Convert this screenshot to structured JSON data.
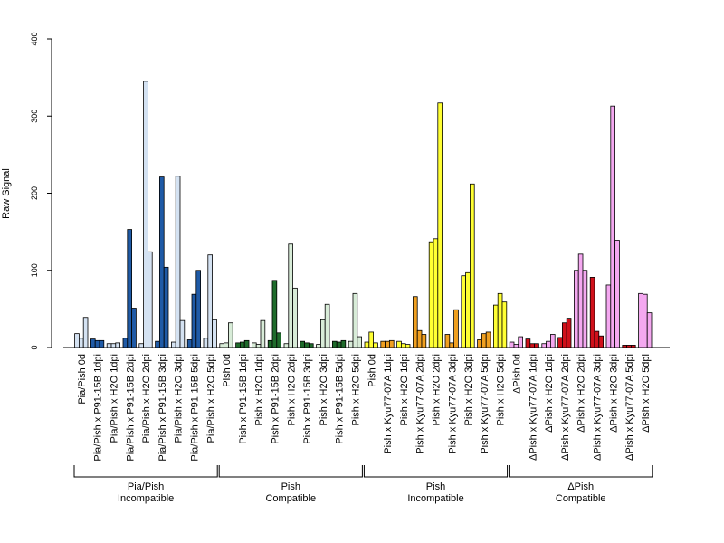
{
  "colors": {
    "pia_incompatible_light": "#d4e2f2",
    "pia_incompatible_dark": "#1f5aa6",
    "pish_compatible_light": "#d8ecd8",
    "pish_compatible_dark": "#1e6b2b",
    "pish_incompatible_light": "#ffff33",
    "pish_incompatible_dark": "#f0a020",
    "dpish_compatible_light": "#f4a8f0",
    "dpish_compatible_dark": "#d0101a"
  },
  "chart_data": {
    "type": "bar",
    "ylabel": "Raw Signal",
    "xlabel": "",
    "ylim": [
      0,
      400
    ],
    "yticks": [
      "0",
      "100",
      "200",
      "300",
      "400"
    ],
    "categories": [
      "Pia/Pish 0d",
      "Pia/Pish x P91-15B 1dpi",
      "Pia/Pish x H2O 1dpi",
      "Pia/Pish x P91-15B 2dpi",
      "Pia/Pish x H2O 2dpi",
      "Pia/Pish x P91-15B 3dpi",
      "Pia/Pish x H2O 3dpi",
      "Pia/Pish x P91-15B 5dpi",
      "Pia/Pish x H2O 5dpi",
      "Pish 0d",
      "Pish x P91-15B 1dpi",
      "Pish x H2O 1dpi",
      "Pish x P91-15B 2dpi",
      "Pish x H2O 2dpi",
      "Pish x P91-15B 3dpi",
      "Pish x H2O 3dpi",
      "Pish x P91-15B 5dpi",
      "Pish x H2O 5dpi",
      "Pish 0d",
      "Pish x Kyu77-07A 1dpi",
      "Pish x H2O 1dpi",
      "Pish x Kyu77-07A 2dpi",
      "Pish x H2O 2dpi",
      "Pish x Kyu77-07A 3dpi",
      "Pish x H2O 3dpi",
      "Pish x Kyu77-07A 5dpi",
      "Pish x H2O 5dpi",
      "ΔPish 0d",
      "ΔPish x Kyu77-07A 1dpi",
      "ΔPish x H2O 1dpi",
      "ΔPish x Kyu77-07A 2dpi",
      "ΔPish x H2O 2dpi",
      "ΔPish x Kyu77-07A 3dpi",
      "ΔPish x H2O 3dpi",
      "ΔPish x Kyu77-07A 5dpi",
      "ΔPish x H2O 5dpi"
    ],
    "values": [
      [
        18,
        12,
        39
      ],
      [
        11,
        9,
        9
      ],
      [
        5,
        5,
        6
      ],
      [
        12,
        153,
        51
      ],
      [
        5,
        345,
        124
      ],
      [
        8,
        221,
        104
      ],
      [
        7,
        222,
        35
      ],
      [
        10,
        69,
        100
      ],
      [
        12,
        120,
        36
      ],
      [
        5,
        6,
        32
      ],
      [
        6,
        7,
        9
      ],
      [
        6,
        4,
        35
      ],
      [
        9,
        87,
        19
      ],
      [
        5,
        134,
        77
      ],
      [
        8,
        6,
        5
      ],
      [
        4,
        36,
        56
      ],
      [
        8,
        7,
        9
      ],
      [
        8,
        70,
        14
      ],
      [
        7,
        20,
        6
      ],
      [
        8,
        8,
        9
      ],
      [
        8,
        5,
        4
      ],
      [
        66,
        22,
        17
      ],
      [
        137,
        141,
        317
      ],
      [
        17,
        6,
        49
      ],
      [
        93,
        97,
        212
      ],
      [
        10,
        18,
        20
      ],
      [
        55,
        70,
        59
      ],
      [
        7,
        4,
        14
      ],
      [
        11,
        5,
        5
      ],
      [
        5,
        8,
        17
      ],
      [
        13,
        32,
        38
      ],
      [
        100,
        121,
        100
      ],
      [
        91,
        21,
        15
      ],
      [
        81,
        313,
        139
      ],
      [
        3,
        3,
        3
      ],
      [
        70,
        69,
        45
      ]
    ],
    "groups": [
      {
        "line1": "Pia/Pish",
        "line2": "Incompatible",
        "start": 0,
        "end": 8,
        "light": "#d4e2f2",
        "dark": "#1f5aa6"
      },
      {
        "line1": "Pish",
        "line2": "Compatible",
        "start": 9,
        "end": 17,
        "light": "#d8ecd8",
        "dark": "#1e6b2b"
      },
      {
        "line1": "Pish",
        "line2": "Incompatible",
        "start": 18,
        "end": 26,
        "light": "#ffff33",
        "dark": "#f0a020"
      },
      {
        "line1": "ΔPish",
        "line2": "Compatible",
        "start": 27,
        "end": 35,
        "light": "#f4a8f0",
        "dark": "#d0101a"
      }
    ],
    "grid": false,
    "legend": "none"
  }
}
